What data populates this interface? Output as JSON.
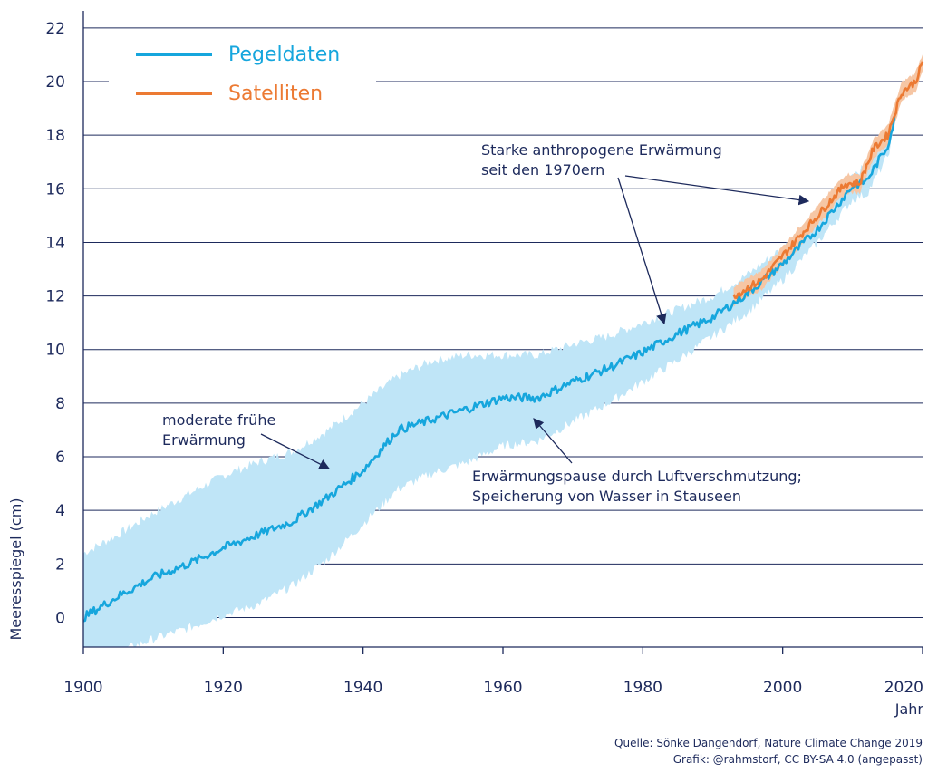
{
  "chart_data": {
    "type": "line",
    "ylabel": "Meeresspiegel (cm)",
    "xlabel": "Jahr",
    "xlim": [
      1900,
      2020
    ],
    "ylim": [
      -1.1,
      22.3
    ],
    "x_ticks": [
      1900,
      1920,
      1940,
      1960,
      1980,
      2000,
      2020
    ],
    "y_ticks": [
      0,
      2,
      4,
      6,
      8,
      10,
      12,
      14,
      16,
      18,
      20,
      22
    ],
    "grid": true,
    "legend": [
      {
        "name": "Pegeldaten",
        "color": "#16a6dd"
      },
      {
        "name": "Satelliten",
        "color": "#ec7a33"
      }
    ],
    "series": [
      {
        "name": "Pegeldaten",
        "color": "#16a6dd",
        "x": [
          1900,
          1905,
          1910,
          1915,
          1920,
          1925,
          1930,
          1935,
          1940,
          1945,
          1950,
          1955,
          1960,
          1965,
          1970,
          1975,
          1980,
          1985,
          1990,
          1995,
          2000,
          2005,
          2010,
          2012,
          2015,
          2016
        ],
        "values": [
          0.0,
          0.8,
          1.5,
          2.0,
          2.6,
          3.1,
          3.6,
          4.5,
          5.5,
          7.0,
          7.4,
          7.8,
          8.2,
          8.2,
          8.8,
          9.3,
          9.9,
          10.6,
          11.2,
          12.1,
          13.2,
          14.5,
          16.1,
          16.3,
          17.6,
          18.6
        ],
        "uncertainty_upper": [
          2.4,
          3.1,
          3.9,
          4.6,
          5.3,
          5.8,
          6.2,
          7.0,
          8.0,
          9.0,
          9.6,
          9.8,
          9.8,
          9.8,
          10.2,
          10.5,
          11.0,
          11.5,
          12.0,
          12.8,
          13.8,
          15.0,
          16.6,
          16.8,
          18.0,
          19.0
        ],
        "uncertainty_lower": [
          -2.0,
          -1.3,
          -0.8,
          -0.4,
          0.1,
          0.5,
          1.2,
          2.2,
          3.5,
          4.8,
          5.4,
          5.8,
          6.4,
          6.6,
          7.3,
          8.0,
          8.8,
          9.6,
          10.5,
          11.4,
          12.6,
          14.0,
          15.6,
          15.8,
          17.2,
          18.2
        ]
      },
      {
        "name": "Satelliten",
        "color": "#ec7a33",
        "x": [
          1993,
          1995,
          1997,
          1999,
          2001,
          2003,
          2005,
          2007,
          2009,
          2011,
          2013,
          2015,
          2017,
          2019,
          2020
        ],
        "values": [
          12.0,
          12.3,
          12.6,
          13.2,
          13.8,
          14.4,
          15.0,
          15.6,
          16.2,
          16.2,
          17.5,
          18.0,
          19.6,
          20.0,
          20.7
        ]
      }
    ],
    "annotations": {
      "early": [
        "moderate frühe",
        "Erwärmung"
      ],
      "pause": [
        "Erwärmungspause durch Luftverschmutzung;",
        "Speicherung von Wasser in Stauseen"
      ],
      "strong": [
        "Starke anthropogene Erwärmung",
        "seit den 1970ern"
      ]
    },
    "source": [
      "Quelle: Sönke Dangendorf, Nature Climate Change 2019",
      "Grafik: @rahmstorf, CC BY-SA 4.0 (angepasst)"
    ]
  }
}
